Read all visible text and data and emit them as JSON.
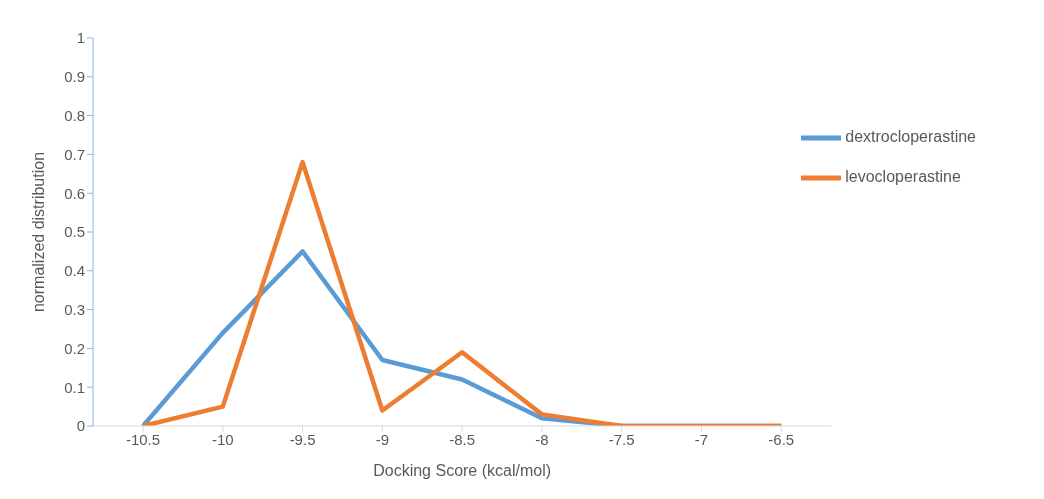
{
  "chart_data": {
    "type": "line",
    "xlabel": "Docking Score (kcal/mol)",
    "ylabel": "normalized distribution",
    "categories": [
      "-10.5",
      "-10",
      "-9.5",
      "-9",
      "-8.5",
      "-8",
      "-7.5",
      "-7",
      "-6.5"
    ],
    "series": [
      {
        "name": "dextrocloperastine",
        "color": "#5b9bd5",
        "values": [
          0,
          0.24,
          0.45,
          0.17,
          0.12,
          0.02,
          0,
          0,
          0
        ]
      },
      {
        "name": "levocloperastine",
        "color": "#ed7d31",
        "values": [
          0,
          0.05,
          0.68,
          0.04,
          0.19,
          0.03,
          0,
          0,
          0
        ]
      }
    ],
    "ylim": [
      0,
      1
    ],
    "yticks": [
      0,
      0.1,
      0.2,
      0.3,
      0.4,
      0.5,
      0.6,
      0.7,
      0.8,
      0.9,
      1
    ],
    "grid": false,
    "legend": "top right",
    "marker": "none",
    "line_style": "solid"
  }
}
